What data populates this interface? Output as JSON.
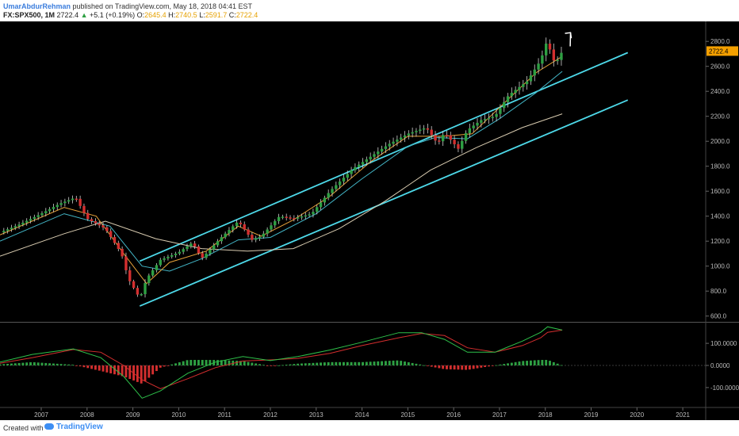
{
  "header": {
    "author": "UmarAbdurRehman",
    "published_text": "published on TradingView.com, May 18, 2018 04:41 EST",
    "symbol": "FX:SPX500, 1M",
    "last": "2722.4",
    "change": "+5.1 (+0.19%)",
    "o_label": "O:",
    "o_val": "2645.4",
    "h_label": "H:",
    "h_val": "2740.5",
    "l_label": "L:",
    "l_val": "2591.7",
    "c_label": "C:",
    "c_val": "2722.4"
  },
  "footer": {
    "created": "Created with",
    "brand": "TradingView"
  },
  "colors": {
    "up": "#2ea043",
    "down": "#d32f2f",
    "channel": "#4dd8e8",
    "ma_fast": "#e8a33a",
    "ma_mid": "#43b7c8",
    "ma_slow": "#d8cbb0",
    "macd": "#2ec14a",
    "signal": "#d42e2e",
    "price_tag": "#f5a000"
  },
  "chart_data": [
    {
      "type": "candlestick",
      "title": "",
      "y_ticks": [
        600,
        800,
        1000,
        1200,
        1400,
        1600,
        1800,
        2000,
        2200,
        2400,
        2600,
        2800
      ],
      "ylim": [
        560,
        2960
      ],
      "x_ticks": [
        "2007",
        "2008",
        "2009",
        "2010",
        "2011",
        "2012",
        "2013",
        "2014",
        "2015",
        "2016",
        "2017",
        "2018",
        "2019",
        "2020",
        "2021"
      ],
      "xlim": [
        2006.1,
        2021.5
      ],
      "price_label": "2722.4",
      "anchors": [
        [
          2006.1,
          1270
        ],
        [
          2006.5,
          1330
        ],
        [
          2007.0,
          1420
        ],
        [
          2007.4,
          1500
        ],
        [
          2007.75,
          1550
        ],
        [
          2008.0,
          1380
        ],
        [
          2008.4,
          1300
        ],
        [
          2008.75,
          1100
        ],
        [
          2008.9,
          900
        ],
        [
          2009.15,
          740
        ],
        [
          2009.3,
          900
        ],
        [
          2009.6,
          1050
        ],
        [
          2010.0,
          1110
        ],
        [
          2010.3,
          1190
        ],
        [
          2010.5,
          1060
        ],
        [
          2010.9,
          1220
        ],
        [
          2011.3,
          1360
        ],
        [
          2011.6,
          1210
        ],
        [
          2011.8,
          1240
        ],
        [
          2012.2,
          1400
        ],
        [
          2012.5,
          1380
        ],
        [
          2012.9,
          1420
        ],
        [
          2013.3,
          1600
        ],
        [
          2013.8,
          1780
        ],
        [
          2014.2,
          1880
        ],
        [
          2014.6,
          1980
        ],
        [
          2015.0,
          2060
        ],
        [
          2015.4,
          2110
        ],
        [
          2015.65,
          1980
        ],
        [
          2015.8,
          2070
        ],
        [
          2016.1,
          1940
        ],
        [
          2016.3,
          2090
        ],
        [
          2016.6,
          2170
        ],
        [
          2016.9,
          2200
        ],
        [
          2017.2,
          2370
        ],
        [
          2017.6,
          2480
        ],
        [
          2017.9,
          2650
        ],
        [
          2018.05,
          2820
        ],
        [
          2018.15,
          2650
        ],
        [
          2018.25,
          2640
        ],
        [
          2018.37,
          2722
        ]
      ],
      "channel_upper": [
        [
          2009.15,
          1040
        ],
        [
          2019.8,
          2710
        ]
      ],
      "channel_lower": [
        [
          2009.15,
          680
        ],
        [
          2019.8,
          2330
        ]
      ],
      "trend_arrow_to": [
        2018.55,
        2870
      ],
      "ma_fast": [
        [
          2006.1,
          1250
        ],
        [
          2007.5,
          1470
        ],
        [
          2008.2,
          1400
        ],
        [
          2008.8,
          1100
        ],
        [
          2009.3,
          860
        ],
        [
          2009.8,
          1030
        ],
        [
          2010.6,
          1120
        ],
        [
          2011.3,
          1320
        ],
        [
          2011.8,
          1240
        ],
        [
          2012.5,
          1370
        ],
        [
          2013.3,
          1560
        ],
        [
          2014.2,
          1840
        ],
        [
          2015.0,
          2040
        ],
        [
          2015.8,
          2040
        ],
        [
          2016.4,
          2060
        ],
        [
          2017.0,
          2270
        ],
        [
          2017.8,
          2550
        ],
        [
          2018.37,
          2680
        ]
      ],
      "ma_mid": [
        [
          2006.1,
          1200
        ],
        [
          2007.5,
          1420
        ],
        [
          2008.5,
          1320
        ],
        [
          2009.2,
          1000
        ],
        [
          2009.8,
          960
        ],
        [
          2010.5,
          1060
        ],
        [
          2011.3,
          1210
        ],
        [
          2012.0,
          1230
        ],
        [
          2013.0,
          1420
        ],
        [
          2014.0,
          1700
        ],
        [
          2015.0,
          1960
        ],
        [
          2015.6,
          2030
        ],
        [
          2016.3,
          2020
        ],
        [
          2017.0,
          2180
        ],
        [
          2017.8,
          2390
        ],
        [
          2018.37,
          2560
        ]
      ],
      "ma_slow": [
        [
          2006.1,
          1080
        ],
        [
          2007.5,
          1260
        ],
        [
          2008.4,
          1360
        ],
        [
          2009.5,
          1220
        ],
        [
          2010.5,
          1140
        ],
        [
          2011.5,
          1120
        ],
        [
          2012.5,
          1140
        ],
        [
          2013.5,
          1300
        ],
        [
          2014.5,
          1520
        ],
        [
          2015.5,
          1770
        ],
        [
          2016.5,
          1950
        ],
        [
          2017.5,
          2110
        ],
        [
          2018.37,
          2220
        ]
      ]
    },
    {
      "type": "macd",
      "title": "",
      "y_ticks": [
        100,
        0,
        -100
      ],
      "y_tick_labels": [
        "100.0000",
        "0.0000",
        "-100.0000"
      ],
      "ylim": [
        -190,
        190
      ],
      "macd": [
        [
          2006.1,
          15
        ],
        [
          2006.8,
          50
        ],
        [
          2007.7,
          75
        ],
        [
          2008.3,
          35
        ],
        [
          2008.8,
          -50
        ],
        [
          2009.2,
          -148
        ],
        [
          2009.6,
          -115
        ],
        [
          2010.2,
          -35
        ],
        [
          2010.8,
          15
        ],
        [
          2011.4,
          40
        ],
        [
          2012.0,
          22
        ],
        [
          2012.6,
          40
        ],
        [
          2013.3,
          70
        ],
        [
          2014.0,
          105
        ],
        [
          2014.8,
          148
        ],
        [
          2015.3,
          148
        ],
        [
          2015.8,
          118
        ],
        [
          2016.3,
          60
        ],
        [
          2016.9,
          60
        ],
        [
          2017.5,
          110
        ],
        [
          2017.9,
          150
        ],
        [
          2018.05,
          175
        ],
        [
          2018.37,
          160
        ]
      ],
      "signal": [
        [
          2006.1,
          10
        ],
        [
          2006.8,
          35
        ],
        [
          2007.7,
          72
        ],
        [
          2008.3,
          60
        ],
        [
          2008.8,
          0
        ],
        [
          2009.2,
          -65
        ],
        [
          2009.6,
          -105
        ],
        [
          2010.2,
          -60
        ],
        [
          2010.8,
          -10
        ],
        [
          2011.4,
          20
        ],
        [
          2012.0,
          25
        ],
        [
          2012.6,
          32
        ],
        [
          2013.3,
          55
        ],
        [
          2014.0,
          90
        ],
        [
          2014.8,
          125
        ],
        [
          2015.3,
          145
        ],
        [
          2015.8,
          135
        ],
        [
          2016.3,
          80
        ],
        [
          2016.9,
          60
        ],
        [
          2017.5,
          90
        ],
        [
          2017.9,
          125
        ],
        [
          2018.05,
          150
        ],
        [
          2018.37,
          160
        ]
      ]
    }
  ]
}
